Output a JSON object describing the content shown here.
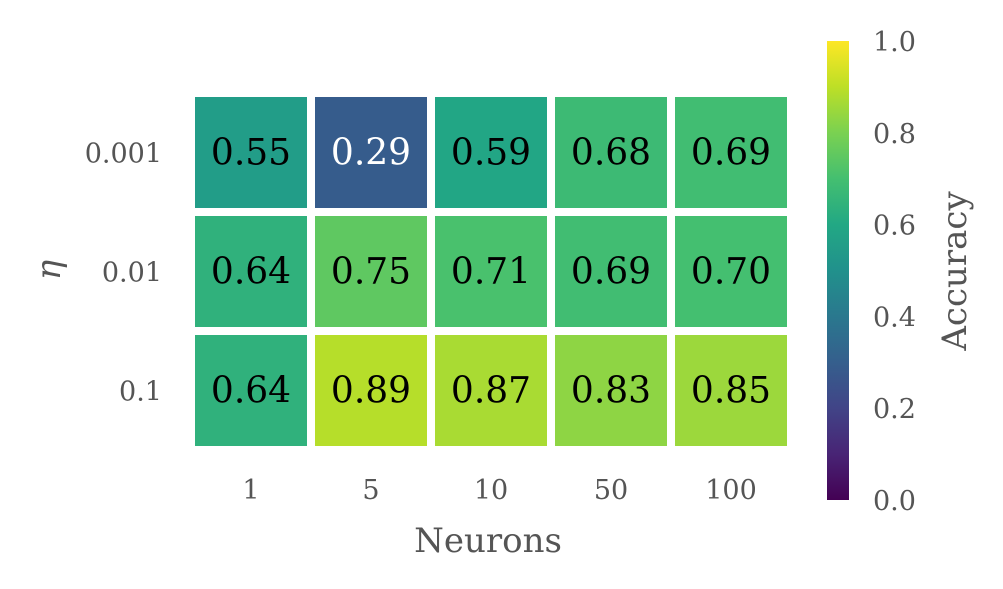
{
  "chart_data": {
    "type": "heatmap",
    "xlabel": "Neurons",
    "ylabel": "η",
    "x_categories": [
      "1",
      "5",
      "10",
      "50",
      "100"
    ],
    "y_categories": [
      "0.001",
      "0.01",
      "0.1"
    ],
    "values": [
      [
        0.55,
        0.29,
        0.59,
        0.68,
        0.69
      ],
      [
        0.64,
        0.75,
        0.71,
        0.69,
        0.7
      ],
      [
        0.64,
        0.89,
        0.87,
        0.83,
        0.85
      ]
    ],
    "value_labels": [
      [
        "0.55",
        "0.29",
        "0.59",
        "0.68",
        "0.69"
      ],
      [
        "0.64",
        "0.75",
        "0.71",
        "0.69",
        "0.70"
      ],
      [
        "0.64",
        "0.89",
        "0.87",
        "0.83",
        "0.85"
      ]
    ],
    "colorbar": {
      "label": "Accuracy",
      "range": [
        0.0,
        1.0
      ],
      "ticks": [
        "0.0",
        "0.2",
        "0.4",
        "0.6",
        "0.8",
        "1.0"
      ],
      "colormap": "viridis"
    },
    "grid": false
  }
}
